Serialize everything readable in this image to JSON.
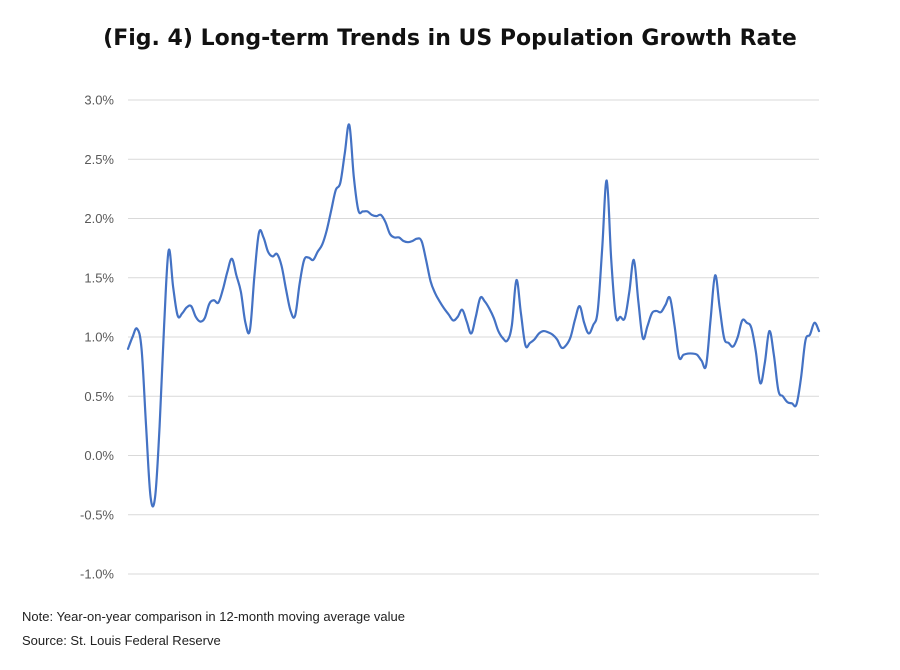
{
  "chart_data": {
    "type": "line",
    "title": "(Fig. 4) Long-term Trends in US Population Growth Rate",
    "ylabel": "",
    "xlabel": "",
    "ylim": [
      -1.0,
      3.0
    ],
    "y_ticks": [
      "3.0%",
      "2.5%",
      "2.0%",
      "1.5%",
      "1.0%",
      "0.5%",
      "0.0%",
      "-0.5%",
      "-1.0%"
    ],
    "grid": true,
    "legend": "none",
    "line_color": "#4472c4",
    "gridline_color": "#d9d9d9",
    "series": [
      {
        "values": [
          0.9,
          1.0,
          1.07,
          0.9,
          0.25,
          -0.35,
          -0.35,
          0.25,
          1.1,
          1.73,
          1.42,
          1.18,
          1.2,
          1.25,
          1.26,
          1.17,
          1.13,
          1.16,
          1.28,
          1.31,
          1.29,
          1.4,
          1.55,
          1.66,
          1.52,
          1.38,
          1.12,
          1.06,
          1.52,
          1.88,
          1.84,
          1.72,
          1.68,
          1.7,
          1.6,
          1.4,
          1.22,
          1.18,
          1.45,
          1.65,
          1.67,
          1.65,
          1.72,
          1.78,
          1.9,
          2.07,
          2.24,
          2.3,
          2.55,
          2.79,
          2.35,
          2.07,
          2.06,
          2.06,
          2.03,
          2.02,
          2.03,
          1.97,
          1.87,
          1.84,
          1.84,
          1.81,
          1.8,
          1.81,
          1.83,
          1.81,
          1.65,
          1.47,
          1.37,
          1.3,
          1.24,
          1.19,
          1.14,
          1.17,
          1.23,
          1.13,
          1.03,
          1.17,
          1.33,
          1.3,
          1.24,
          1.16,
          1.05,
          0.99,
          0.97,
          1.1,
          1.48,
          1.2,
          0.93,
          0.95,
          0.98,
          1.03,
          1.05,
          1.04,
          1.02,
          0.98,
          0.91,
          0.93,
          1.0,
          1.15,
          1.26,
          1.12,
          1.03,
          1.1,
          1.22,
          1.75,
          2.32,
          1.65,
          1.18,
          1.17,
          1.16,
          1.38,
          1.65,
          1.3,
          0.99,
          1.09,
          1.2,
          1.22,
          1.21,
          1.27,
          1.33,
          1.1,
          0.83,
          0.85,
          0.86,
          0.86,
          0.85,
          0.8,
          0.76,
          1.15,
          1.52,
          1.25,
          0.99,
          0.95,
          0.92,
          1.0,
          1.14,
          1.12,
          1.08,
          0.88,
          0.61,
          0.78,
          1.05,
          0.85,
          0.55,
          0.5,
          0.45,
          0.44,
          0.43,
          0.65,
          0.97,
          1.02,
          1.12,
          1.05
        ]
      }
    ]
  },
  "notes": {
    "note": "Note: Year-on-year comparison in 12-month moving average value",
    "source": "Source: St. Louis Federal Reserve"
  }
}
